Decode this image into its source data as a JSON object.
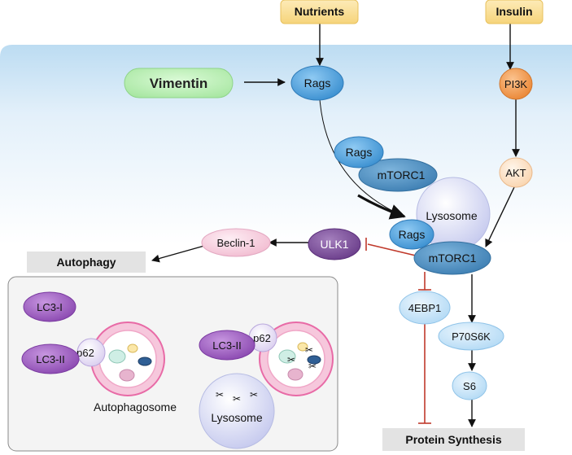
{
  "nodes": {
    "nutrients": "Nutrients",
    "insulin": "Insulin",
    "vimentin": "Vimentin",
    "rags_top": "Rags",
    "pi3k": "PI3K",
    "rags_complex": "Rags",
    "mtorc1_complex": "mTORC1",
    "akt": "AKT",
    "lysosome_main": "Lysosome",
    "rags_lyso": "Rags",
    "mtorc1_main": "mTORC1",
    "ulk1": "ULK1",
    "beclin1": "Beclin-1",
    "autophagy": "Autophagy",
    "ebp1": "4EBP1",
    "p70s6k": "P70S6K",
    "s6": "S6",
    "protein_synthesis": "Protein Synthesis",
    "lc3i": "LC3-I",
    "lc3ii_left": "LC3-II",
    "p62_left": "p62",
    "autophagosome": "Autophagosome",
    "lc3ii_right": "LC3-II",
    "p62_right": "p62",
    "lysosome_small": "Lysosome"
  },
  "colors": {
    "activation_arrow": "#111111",
    "inhibition_line": "#c0392b",
    "membrane_band": "#d3e8f6",
    "input_box": "#fbe19b",
    "vimentin_fill": "#b8efb3",
    "rags_fill": "#4fa6e4",
    "mtorc1_fill": "#4c8fc2",
    "pi3k_fill": "#f39b52",
    "akt_fill": "#fde6cf",
    "ulk1_fill": "#7b4a9a",
    "beclin_fill": "#f5cddc",
    "lc3_fill": "#a463c6",
    "p62_fill": "#ece5f6",
    "autophagosome_rim": "#e86aa6",
    "label_box": "#e3e3e3",
    "autophagy_panel": "#f4f4f4"
  }
}
